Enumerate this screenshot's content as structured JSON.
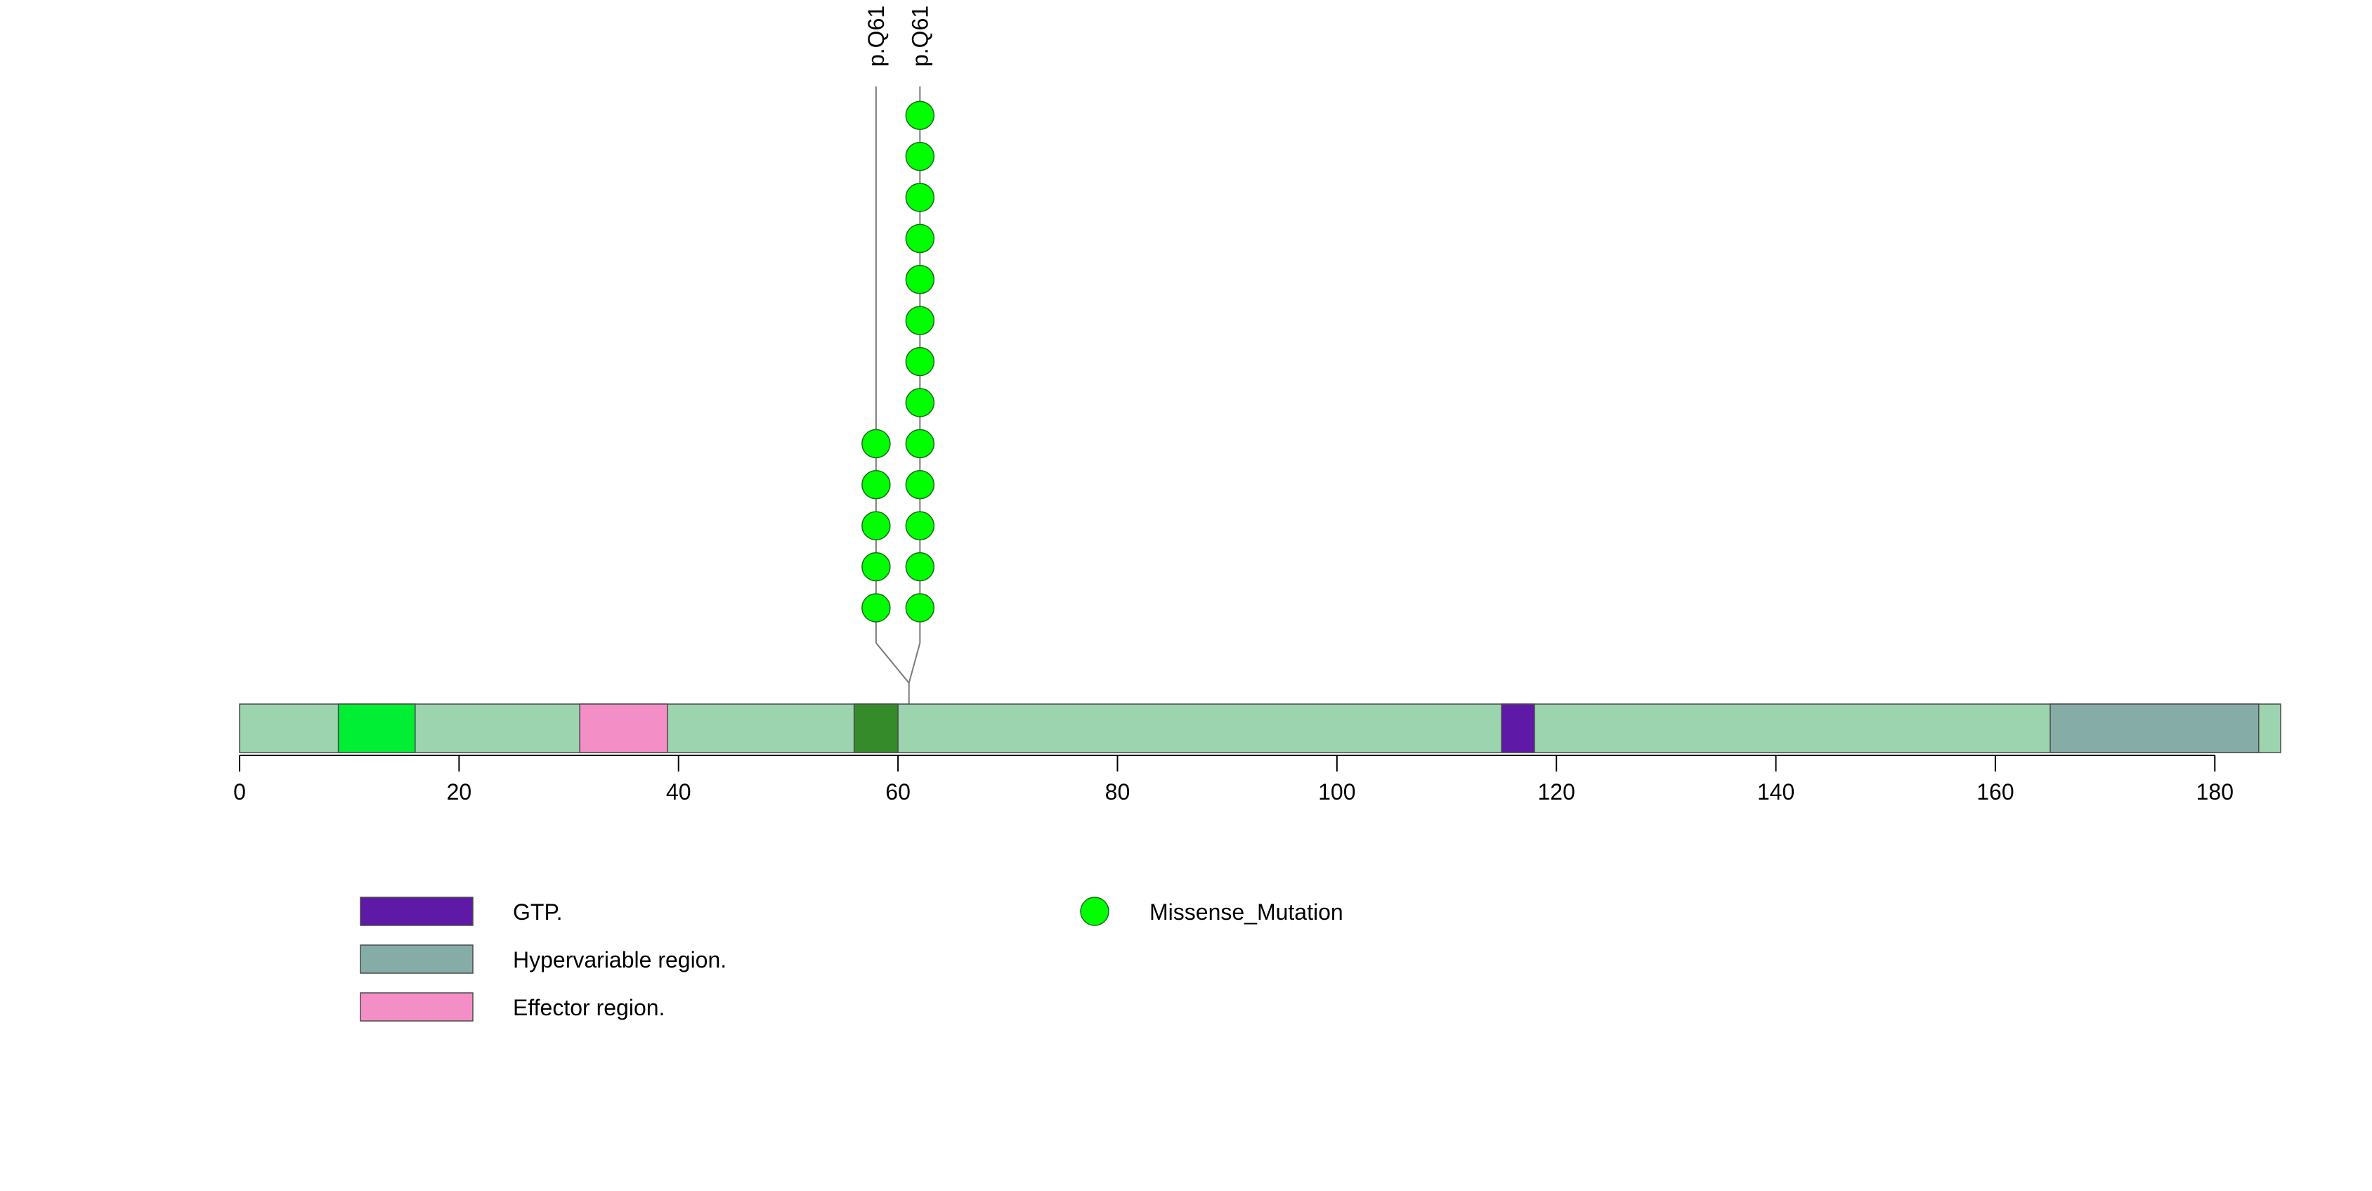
{
  "chart_data": {
    "type": "lollipop",
    "title": "",
    "xlabel": "",
    "ylabel": "",
    "protein_length": 186,
    "xlim": [
      0,
      186
    ],
    "x_ticks": [
      0,
      20,
      40,
      60,
      80,
      100,
      120,
      140,
      160,
      180
    ],
    "grid": false,
    "legend_position": "bottom-left",
    "backbone_color": "#9cd4b0",
    "domains": [
      {
        "start": 9,
        "end": 16,
        "color": "#00ee33",
        "legend": false
      },
      {
        "start": 31,
        "end": 39,
        "color": "#f38fc6",
        "label": "Effector region."
      },
      {
        "start": 56,
        "end": 60,
        "color": "#358b2a",
        "legend": false
      },
      {
        "start": 115,
        "end": 118,
        "color": "#5f19a7",
        "label": "GTP."
      },
      {
        "start": 165,
        "end": 184,
        "color": "#86aca8",
        "label": "Hypervariable region."
      }
    ],
    "mutations": [
      {
        "label": "p.Q61",
        "position": 61,
        "display_x": 58,
        "count": 5,
        "type": "Missense_Mutation",
        "color": "#00ff00"
      },
      {
        "label": "p.Q61",
        "position": 61,
        "display_x": 62,
        "count": 13,
        "type": "Missense_Mutation",
        "color": "#00ff00"
      }
    ],
    "legend_domains": [
      {
        "label": "GTP.",
        "color": "#5f19a7"
      },
      {
        "label": "Hypervariable region.",
        "color": "#86aca8"
      },
      {
        "label": "Effector region.",
        "color": "#f38fc6"
      }
    ],
    "legend_mutations": [
      {
        "label": "Missense_Mutation",
        "color": "#00ff00"
      }
    ]
  }
}
